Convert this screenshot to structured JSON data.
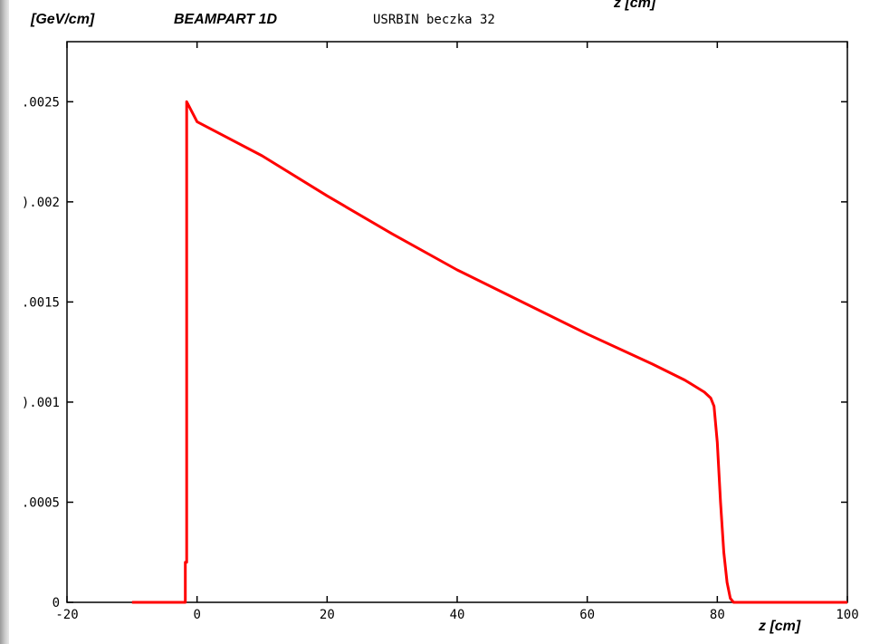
{
  "header": {
    "ylabel": "[GeV/cm]",
    "title": "BEAMPART 1D",
    "subtitle": "USRBIN beczka 32",
    "top_clipped_label": "z [cm]"
  },
  "chart_data": {
    "type": "line",
    "title": "BEAMPART 1D",
    "subtitle": "USRBIN beczka 32",
    "xlabel": "z [cm]",
    "ylabel": "[GeV/cm]",
    "xlim": [
      -20,
      100
    ],
    "ylim": [
      0,
      0.0028
    ],
    "x_ticks": [
      -20,
      0,
      20,
      40,
      60,
      80,
      100
    ],
    "x_tick_labels": [
      "-20",
      "0",
      "20",
      "40",
      "60",
      "80",
      "100"
    ],
    "y_ticks": [
      0,
      0.0005,
      0.001,
      0.0015,
      0.002,
      0.0025
    ],
    "y_tick_labels": [
      "0",
      ".0005",
      ").001",
      ".0015",
      ").002",
      ".0025"
    ],
    "grid": false,
    "series": [
      {
        "color": "#ff0000",
        "x": [
          -10,
          -2,
          -1.8,
          -1.8,
          -1.6,
          -1.6,
          0,
          10,
          20,
          30,
          40,
          50,
          60,
          70,
          75,
          78,
          79,
          79.5,
          80,
          80.5,
          81,
          81.5,
          82,
          82.5,
          83,
          90,
          100
        ],
        "y": [
          0,
          0,
          0,
          0.0002,
          0.0002,
          0.0025,
          0.0024,
          0.00223,
          0.00203,
          0.00184,
          0.00166,
          0.0015,
          0.00134,
          0.00119,
          0.00111,
          0.00105,
          0.00102,
          0.00098,
          0.0008,
          0.0005,
          0.00025,
          0.0001,
          2e-05,
          0,
          0,
          0,
          0
        ]
      }
    ]
  }
}
